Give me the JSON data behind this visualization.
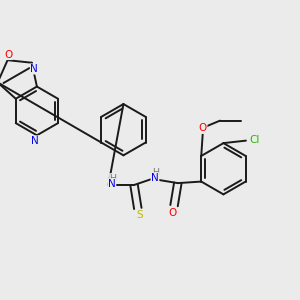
{
  "bg_color": "#ebebeb",
  "bond_color": "#1a1a1a",
  "atom_colors": {
    "O": "#ff0000",
    "N": "#0000ee",
    "S": "#bbbb00",
    "Cl": "#22bb00",
    "H": "#777777",
    "C": "#1a1a1a"
  },
  "figsize": [
    3.0,
    3.0
  ],
  "dpi": 100,
  "lw": 1.4
}
